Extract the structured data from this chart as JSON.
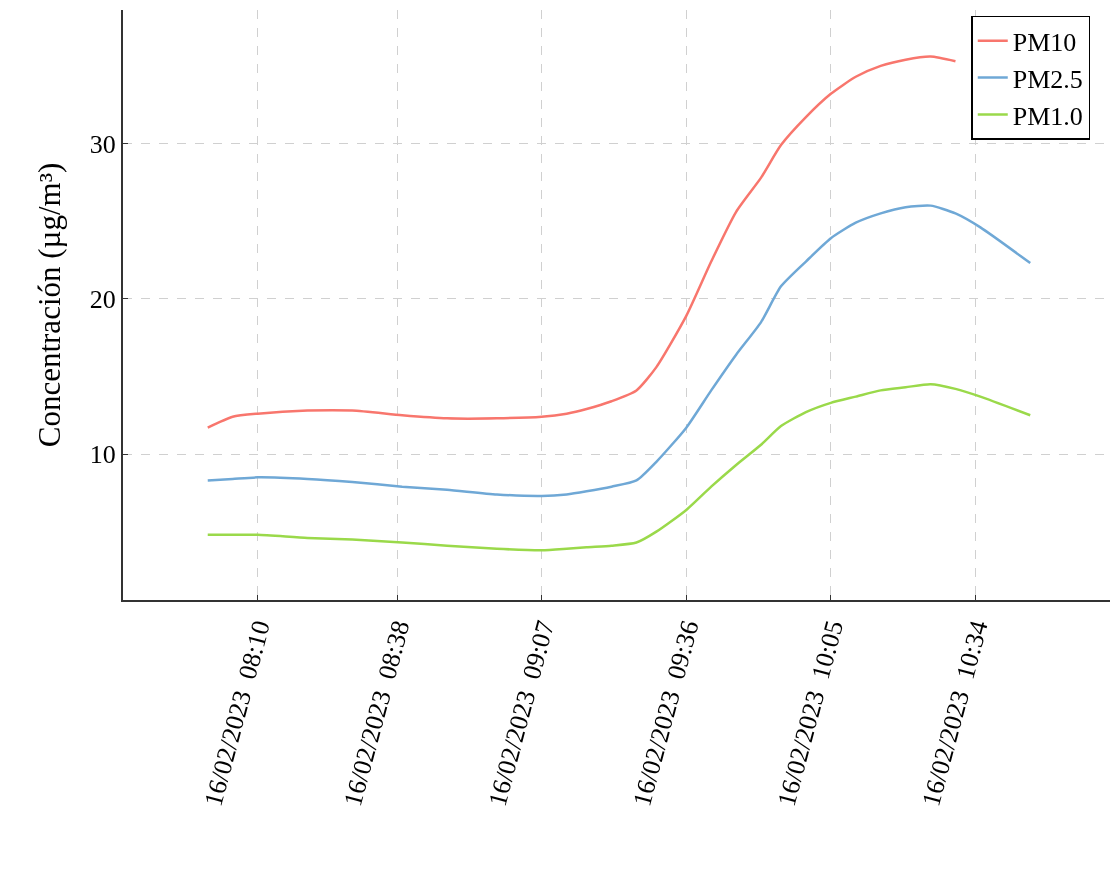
{
  "chart_data": {
    "type": "line",
    "ylabel": "Concentración (µg/m³)",
    "x": [
      "2023-02-16T08:00",
      "2023-02-16T08:05",
      "2023-02-16T08:10",
      "2023-02-16T08:20",
      "2023-02-16T08:29",
      "2023-02-16T08:39",
      "2023-02-16T08:48",
      "2023-02-16T08:58",
      "2023-02-16T09:07",
      "2023-02-16T09:12",
      "2023-02-16T09:16",
      "2023-02-16T09:21",
      "2023-02-16T09:26",
      "2023-02-16T09:30",
      "2023-02-16T09:36",
      "2023-02-16T09:41",
      "2023-02-16T09:46",
      "2023-02-16T09:51",
      "2023-02-16T09:55",
      "2023-02-16T10:00",
      "2023-02-16T10:05",
      "2023-02-16T10:10",
      "2023-02-16T10:15",
      "2023-02-16T10:20",
      "2023-02-16T10:25",
      "2023-02-16T10:30",
      "2023-02-16T10:35",
      "2023-02-16T10:45"
    ],
    "series": [
      {
        "name": "PM10",
        "color": "#f8766d",
        "values": [
          11.7,
          12.4,
          12.6,
          12.8,
          12.8,
          12.5,
          12.3,
          12.3,
          12.4,
          12.6,
          12.9,
          13.4,
          14.1,
          15.6,
          18.9,
          22.4,
          25.6,
          27.8,
          29.9,
          31.7,
          33.2,
          34.3,
          35.0,
          35.4,
          35.6,
          35.3,
          null,
          null
        ]
      },
      {
        "name": "PM2.5",
        "color": "#6fa8d6",
        "values": [
          8.3,
          8.4,
          8.5,
          8.4,
          8.2,
          7.9,
          7.7,
          7.4,
          7.3,
          7.4,
          7.6,
          7.9,
          8.3,
          9.5,
          11.7,
          14.1,
          16.4,
          18.5,
          20.8,
          22.4,
          23.9,
          24.9,
          25.5,
          25.9,
          26.0,
          25.5,
          24.6,
          22.3
        ]
      },
      {
        "name": "PM1.0",
        "color": "#9ad94a",
        "values": [
          4.8,
          4.8,
          4.8,
          4.6,
          4.5,
          4.3,
          4.1,
          3.9,
          3.8,
          3.9,
          4.0,
          4.1,
          4.3,
          5.0,
          6.4,
          7.9,
          9.3,
          10.6,
          11.8,
          12.7,
          13.3,
          13.7,
          14.1,
          14.3,
          14.5,
          14.2,
          13.7,
          12.5
        ]
      }
    ],
    "xlim": [
      "2023-02-16T07:43",
      "2023-02-16T11:01"
    ],
    "xticks": [
      {
        "value": "2023-02-16T08:10",
        "label": "16/02/2023  08:10"
      },
      {
        "value": "2023-02-16T08:38",
        "label": "16/02/2023  08:38"
      },
      {
        "value": "2023-02-16T09:07",
        "label": "16/02/2023  09:07"
      },
      {
        "value": "2023-02-16T09:36",
        "label": "16/02/2023  09:36"
      },
      {
        "value": "2023-02-16T10:05",
        "label": "16/02/2023  10:05"
      },
      {
        "value": "2023-02-16T10:34",
        "label": "16/02/2023  10:34"
      }
    ],
    "ylim": [
      0.6,
      38.6
    ],
    "yticks": [
      10,
      20,
      30
    ],
    "grid": true,
    "legend": "top right",
    "marker": "none",
    "line_style": "solid"
  }
}
